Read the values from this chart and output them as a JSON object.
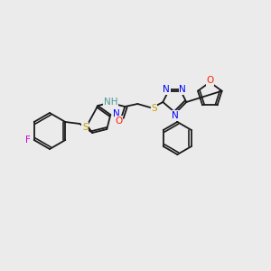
{
  "background_color": "#ebebeb",
  "bond_color": "#1a1a1a",
  "bond_lw": 1.3,
  "font_size": 7.5,
  "colors": {
    "N": "#0000ff",
    "S": "#c8a000",
    "O": "#ff2200",
    "F": "#cc00cc",
    "H": "#4d9999",
    "C": "#1a1a1a"
  }
}
